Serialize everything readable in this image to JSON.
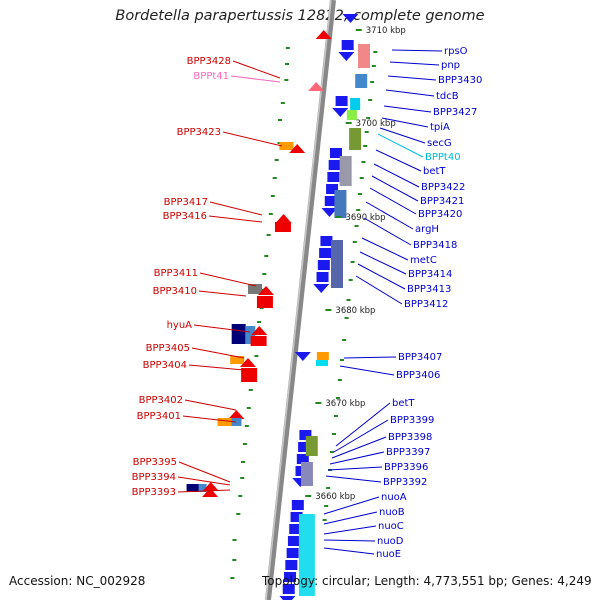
{
  "title": "Bordetella parapertussis 12822, complete genome",
  "footer": {
    "accession": "Accession: NC_002928",
    "topology": "Topology: circular; Length: 4,773,551 bp; Genes: 4,249"
  },
  "colors": {
    "left_labels": "#cc0000",
    "right_labels": "#0000cc",
    "trna_left": "#ff66bb",
    "trna_right": "#00bbdd",
    "backbone": "#888888",
    "ticks": "#228822"
  },
  "scale_marks": [
    "3710 kbp",
    "3700 kbp",
    "3690 kbp",
    "3680 kbp",
    "3670 kbp",
    "3660 kbp"
  ],
  "left_labels": [
    "BPP3428",
    "BPPt41",
    "BPP3423",
    "BPP3417",
    "BPP3416",
    "BPP3411",
    "BPP3410",
    "hyuA",
    "BPP3405",
    "BPP3404",
    "BPP3402",
    "BPP3401",
    "BPP3395",
    "BPP3394",
    "BPP3393"
  ],
  "right_labels": [
    "rpsO",
    "pnp",
    "BPP3430",
    "tdcB",
    "BPP3427",
    "tpiA",
    "secG",
    "BPPt40",
    "betT",
    "BPP3422",
    "BPP3421",
    "BPP3420",
    "argH",
    "BPP3418",
    "metC",
    "BPP3414",
    "BPP3413",
    "BPP3412",
    "BPP3407",
    "BPP3406",
    "betT",
    "BPP3399",
    "BPP3398",
    "BPP3397",
    "BPP3396",
    "BPP3392",
    "nuoA",
    "nuoB",
    "nuoC",
    "nuoD",
    "nuoE"
  ]
}
